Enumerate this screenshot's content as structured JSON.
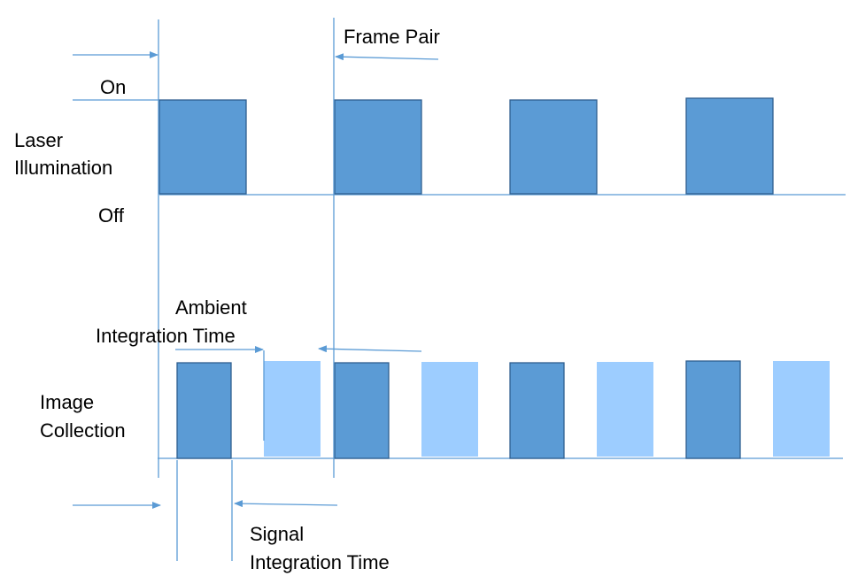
{
  "labels": {
    "on": "On",
    "off": "Off",
    "laser_line1": "Laser",
    "laser_line2": "Illumination",
    "image_line1": "Image",
    "image_line2": "Collection",
    "frame_pair": "Frame Pair",
    "ambient_line1": "Ambient",
    "ambient_line2": "Integration Time",
    "signal_line1": "Signal",
    "signal_line2": "Integration Time"
  },
  "colors": {
    "line": "#5b9bd5",
    "signal_frame": "#5b9bd5",
    "signal_frame_border": "#2f5f8f",
    "ambient_frame": "#9dcdff"
  },
  "laser_pulses": 4,
  "image_frames": [
    "signal",
    "ambient",
    "signal",
    "ambient",
    "signal",
    "ambient",
    "signal",
    "ambient"
  ]
}
